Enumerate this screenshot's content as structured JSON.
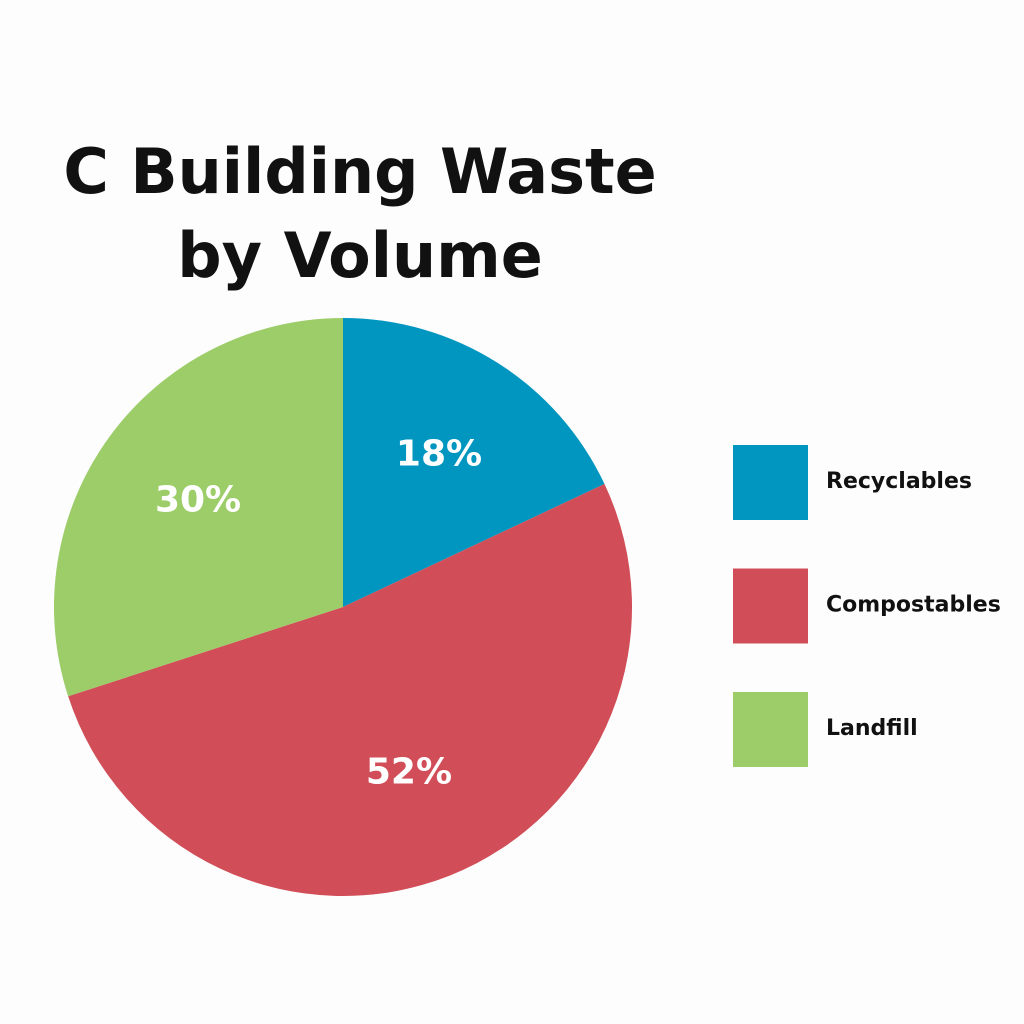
{
  "chart_data": {
    "type": "pie",
    "title": "C Building Waste by Volume",
    "categories": [
      "Recyclables",
      "Compostables",
      "Landfill"
    ],
    "values": [
      18,
      52,
      30
    ],
    "value_labels": [
      "18%",
      "52%",
      "30%"
    ],
    "colors": [
      "#0096bf",
      "#d14d57",
      "#9ccd69"
    ],
    "legend": "right"
  }
}
